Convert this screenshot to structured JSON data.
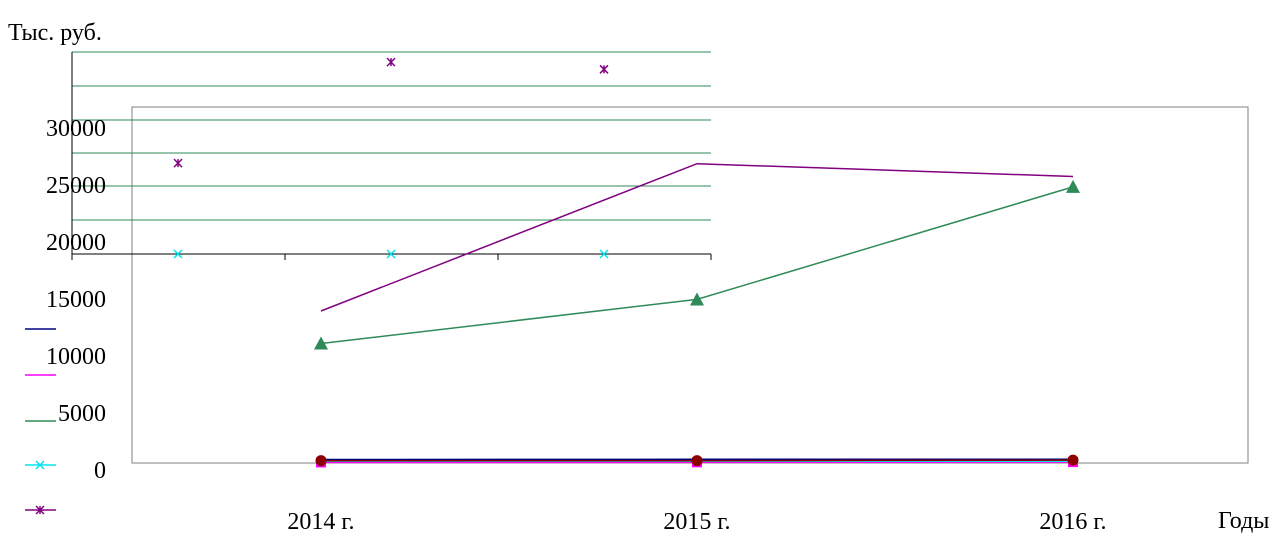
{
  "chart_data": {
    "type": "line",
    "ylabel": "Тыс.  руб.",
    "xlabel": "Годы",
    "categories": [
      "2014 г.",
      "2015 г.",
      "2016 г."
    ],
    "yticks": [
      "0",
      "5000",
      "10000",
      "15000",
      "20000",
      "25000",
      "30000"
    ],
    "ylim": [
      0,
      30000
    ],
    "grid": false,
    "series": [
      {
        "color": "#000080",
        "marker": "none",
        "values": [
          300,
          320,
          330
        ]
      },
      {
        "color": "#ff00ff",
        "marker": "square",
        "values": [
          50,
          60,
          80
        ]
      },
      {
        "color": "#2e8b57",
        "marker": "triangle",
        "values": [
          10300,
          14100,
          23800
        ]
      },
      {
        "color": "#00e5ee",
        "marker": "x",
        "values": [
          150,
          150,
          150
        ]
      },
      {
        "color": "#800080",
        "marker": "star",
        "values": [
          13100,
          25800,
          24700
        ]
      },
      {
        "color": "#8b0000",
        "marker": "circle",
        "values": [
          200,
          200,
          250
        ]
      }
    ],
    "legend": {
      "placement": "left",
      "entries": [
        {
          "color": "#000080",
          "marker": "none"
        },
        {
          "color": "#ff00ff",
          "marker": "none"
        },
        {
          "color": "#2e8b57",
          "marker": "none"
        },
        {
          "color": "#00e5ee",
          "marker": "x"
        },
        {
          "color": "#800080",
          "marker": "star"
        }
      ]
    },
    "overlay": {
      "gridline_color": "#2e8b57",
      "points": [
        {
          "series": "star",
          "color": "#800080",
          "values": [
            25300,
            32300,
            31800
          ]
        },
        {
          "series": "x",
          "color": "#00e5ee",
          "values": [
            19000,
            19000,
            19000
          ]
        }
      ]
    }
  }
}
